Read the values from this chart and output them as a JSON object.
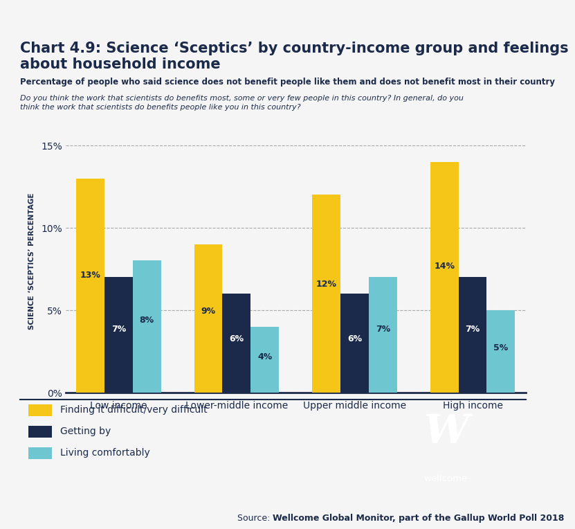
{
  "title_line1": "Chart 4.9: Science ‘Sceptics’ by country-income group and feelings",
  "title_line2": "about household income",
  "subtitle1": "Percentage of people who said science does not benefit people like them and does not benefit most in their country",
  "subtitle2": "Do you think the work that scientists do benefits most, some or very few people in this country? In general, do you\nthink the work that scientists do benefits people like you in this country?",
  "ylabel": "SCIENCE ‘SCEPTICS’ PERCENTAGE",
  "source_plain": "Source: ",
  "source_bold": "Wellcome Global Monitor, part of the Gallup World Poll 2018",
  "categories": [
    "Low income",
    "Lower-middle income",
    "Upper middle income",
    "High income"
  ],
  "series": {
    "Finding it difficult/very difficult": [
      13,
      9,
      12,
      14
    ],
    "Getting by": [
      7,
      6,
      6,
      7
    ],
    "Living comfortably": [
      8,
      4,
      7,
      5
    ]
  },
  "colors": {
    "Finding it difficult/very difficult": "#F5C518",
    "Getting by": "#1B2A4A",
    "Living comfortably": "#6EC6D0"
  },
  "label_colors": {
    "Finding it difficult/very difficult": "#1B2A4A",
    "Getting by": "#FFFFFF",
    "Living comfortably": "#1B2A4A"
  },
  "ylim": [
    0,
    16
  ],
  "yticks": [
    0,
    5,
    10,
    15
  ],
  "ytick_labels": [
    "0%",
    "5%",
    "10%",
    "15%"
  ],
  "bar_width": 0.24,
  "background_color": "#F5F5F5",
  "top_bar_color": "#1B2A4A",
  "logo_bg": "#1B2A4A",
  "text_color": "#1B2A4A"
}
